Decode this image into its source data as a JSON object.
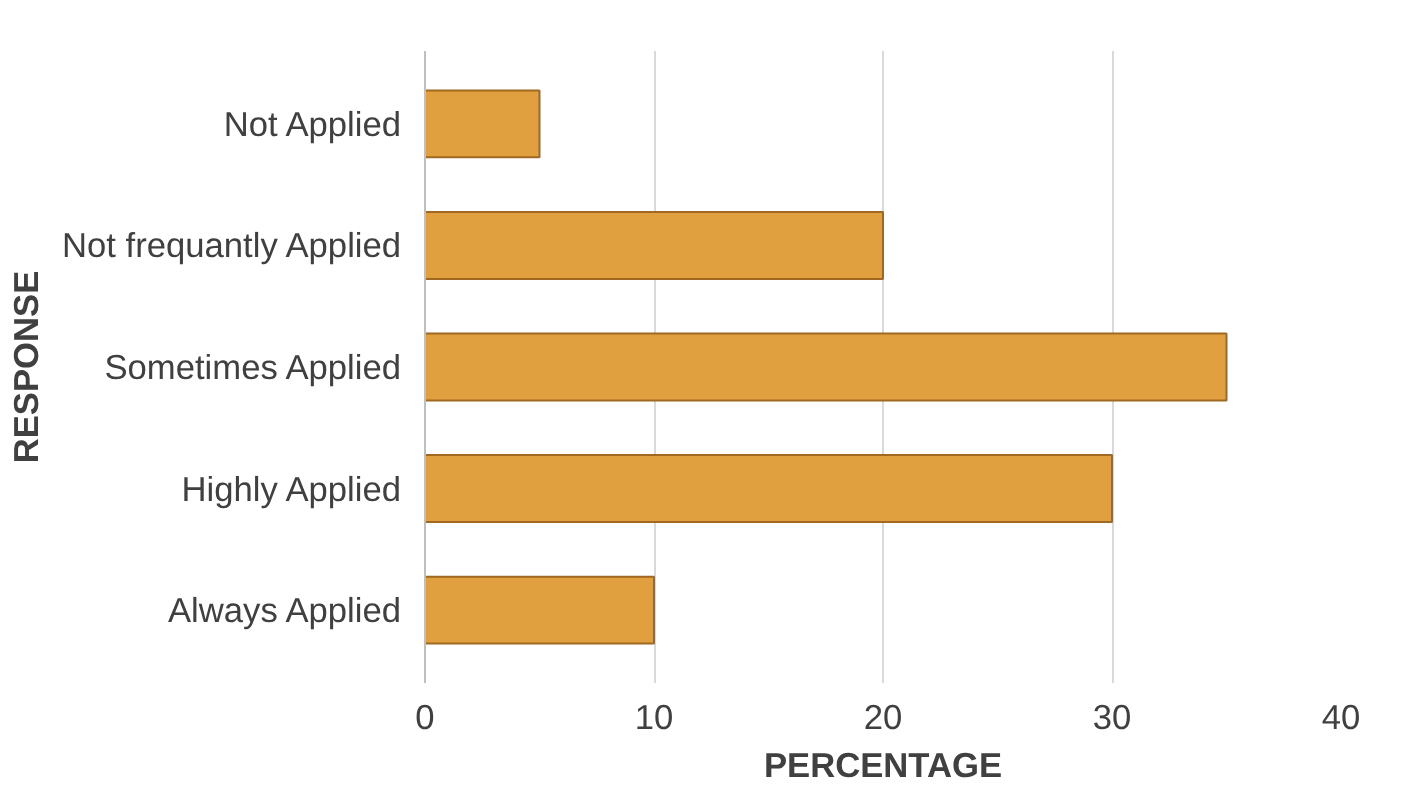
{
  "chart_data": {
    "type": "bar",
    "orientation": "horizontal",
    "xlabel": "PERCENTAGE",
    "ylabel": "RESPONSE",
    "categories": [
      "Not Applied",
      "Not frequantly Applied",
      "Sometimes Applied",
      "Highly Applied",
      "Always Applied"
    ],
    "values": [
      5,
      20,
      35,
      30,
      10
    ],
    "color": "#e0a040",
    "xlim": [
      0,
      40
    ],
    "xticks": [
      0,
      10,
      20,
      30,
      40
    ],
    "grid": "x"
  }
}
